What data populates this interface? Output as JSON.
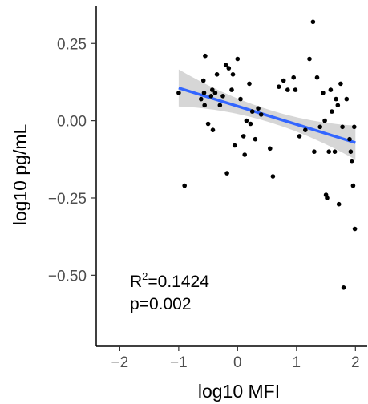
{
  "chart_data": {
    "type": "scatter",
    "xlabel": "log10 MFI",
    "ylabel": "log10 pg/mL",
    "xlim": [
      -2.4,
      2.2
    ],
    "ylim": [
      -0.73,
      0.37
    ],
    "x_ticks": [
      -2,
      -1,
      0,
      1,
      2
    ],
    "x_tick_labels": [
      "−2",
      "−1",
      "0",
      "1",
      "2"
    ],
    "y_ticks": [
      -0.5,
      -0.25,
      0.0,
      0.25
    ],
    "y_tick_labels": [
      "−0.50",
      "−0.25",
      "0.00",
      "0.25"
    ],
    "grid": false,
    "points": [
      {
        "x": -1.0,
        "y": 0.09
      },
      {
        "x": -0.9,
        "y": -0.21
      },
      {
        "x": -0.62,
        "y": 0.07
      },
      {
        "x": -0.58,
        "y": 0.13
      },
      {
        "x": -0.56,
        "y": 0.05
      },
      {
        "x": -0.55,
        "y": 0.21
      },
      {
        "x": -0.57,
        "y": 0.09
      },
      {
        "x": -0.5,
        "y": -0.01
      },
      {
        "x": -0.45,
        "y": 0.08
      },
      {
        "x": -0.43,
        "y": 0.1
      },
      {
        "x": -0.42,
        "y": -0.03
      },
      {
        "x": -0.38,
        "y": 0.09
      },
      {
        "x": -0.35,
        "y": 0.15
      },
      {
        "x": -0.3,
        "y": 0.05
      },
      {
        "x": -0.25,
        "y": 0.08
      },
      {
        "x": -0.2,
        "y": 0.18
      },
      {
        "x": -0.15,
        "y": 0.17
      },
      {
        "x": -0.18,
        "y": -0.17
      },
      {
        "x": -0.1,
        "y": 0.1
      },
      {
        "x": -0.08,
        "y": 0.15
      },
      {
        "x": -0.05,
        "y": -0.08
      },
      {
        "x": 0.0,
        "y": 0.2
      },
      {
        "x": 0.05,
        "y": 0.07
      },
      {
        "x": 0.1,
        "y": -0.05
      },
      {
        "x": 0.12,
        "y": -0.11
      },
      {
        "x": 0.15,
        "y": 0.0
      },
      {
        "x": 0.2,
        "y": 0.12
      },
      {
        "x": 0.22,
        "y": -0.01
      },
      {
        "x": 0.25,
        "y": 0.03
      },
      {
        "x": 0.3,
        "y": -0.06
      },
      {
        "x": 0.35,
        "y": 0.04
      },
      {
        "x": 0.4,
        "y": 0.02
      },
      {
        "x": 0.55,
        "y": -0.09
      },
      {
        "x": 0.6,
        "y": -0.18
      },
      {
        "x": 0.7,
        "y": 0.11
      },
      {
        "x": 0.78,
        "y": 0.13
      },
      {
        "x": 0.85,
        "y": 0.1
      },
      {
        "x": 0.95,
        "y": 0.14
      },
      {
        "x": 0.98,
        "y": 0.1
      },
      {
        "x": 1.05,
        "y": -0.05
      },
      {
        "x": 1.15,
        "y": -0.03
      },
      {
        "x": 1.22,
        "y": 0.2
      },
      {
        "x": 1.28,
        "y": 0.32
      },
      {
        "x": 1.3,
        "y": -0.1
      },
      {
        "x": 1.35,
        "y": 0.14
      },
      {
        "x": 1.4,
        "y": -0.02
      },
      {
        "x": 1.45,
        "y": 0.09
      },
      {
        "x": 1.48,
        "y": 0.0
      },
      {
        "x": 1.5,
        "y": -0.24
      },
      {
        "x": 1.52,
        "y": -0.25
      },
      {
        "x": 1.55,
        "y": -0.1
      },
      {
        "x": 1.58,
        "y": 0.1
      },
      {
        "x": 1.6,
        "y": 0.03
      },
      {
        "x": 1.65,
        "y": -0.1
      },
      {
        "x": 1.67,
        "y": 0.07
      },
      {
        "x": 1.7,
        "y": 0.05
      },
      {
        "x": 1.72,
        "y": -0.27
      },
      {
        "x": 1.75,
        "y": 0.12
      },
      {
        "x": 1.78,
        "y": -0.02
      },
      {
        "x": 1.8,
        "y": -0.54
      },
      {
        "x": 1.85,
        "y": 0.07
      },
      {
        "x": 1.9,
        "y": -0.06
      },
      {
        "x": 1.92,
        "y": -0.1
      },
      {
        "x": 1.94,
        "y": -0.13
      },
      {
        "x": 1.96,
        "y": -0.21
      },
      {
        "x": 1.98,
        "y": -0.02
      },
      {
        "x": 1.99,
        "y": -0.35
      }
    ],
    "regression": {
      "x_range": [
        -1.0,
        2.0
      ],
      "intercept": 0.047,
      "slope": -0.059,
      "ci_half_width_at_ends": 0.06,
      "ci_half_width_at_center": 0.02,
      "ci_center_x": 0.55,
      "line_color": "#3366ff",
      "band_color": "#999999"
    },
    "annotations": {
      "r2_base": "R",
      "r2_sup": "2",
      "r2_value": "=0.1424",
      "p_value": "p=0.002"
    },
    "point_color": "#000000"
  }
}
